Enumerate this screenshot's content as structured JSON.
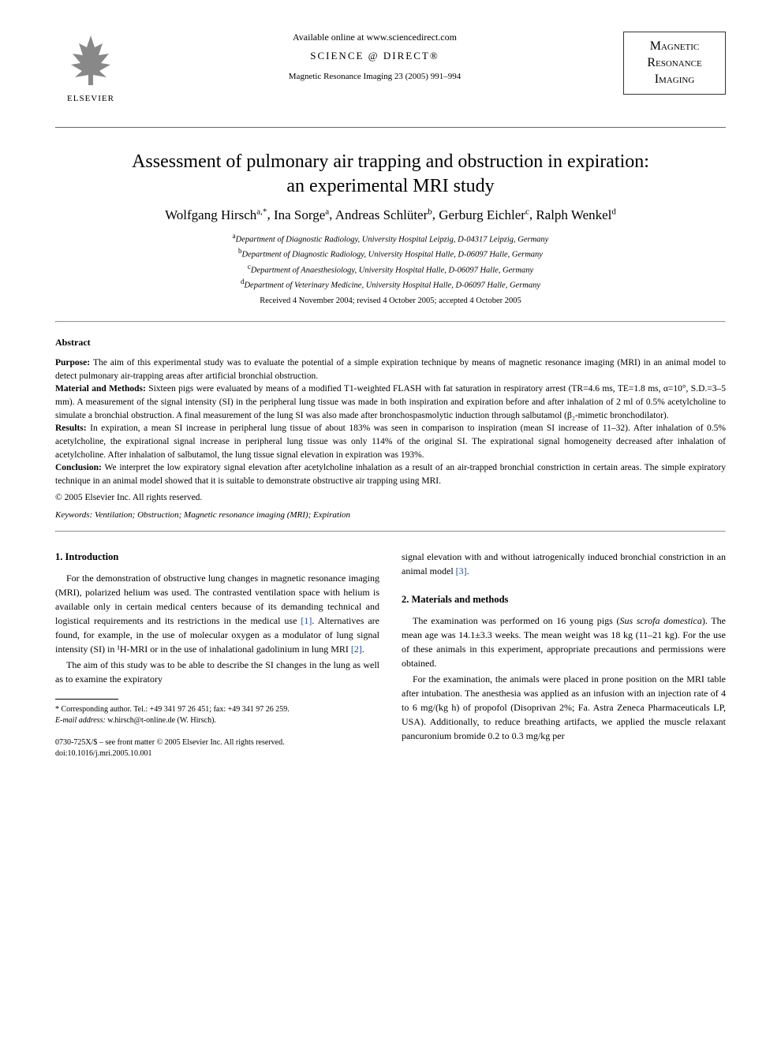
{
  "header": {
    "available_online": "Available online at www.sciencedirect.com",
    "sciencedirect": "SCIENCE @ DIRECT®",
    "journal_ref": "Magnetic Resonance Imaging 23 (2005) 991–994",
    "elsevier_label": "ELSEVIER",
    "mri_logo_line1": "Magnetic",
    "mri_logo_line2": "Resonance",
    "mri_logo_line3": "Imaging"
  },
  "title_line1": "Assessment of pulmonary air trapping and obstruction in expiration:",
  "title_line2": "an experimental MRI study",
  "authors_html": "Wolfgang Hirsch",
  "authors": [
    {
      "name": "Wolfgang Hirsch",
      "sup": "a,*"
    },
    {
      "name": "Ina Sorge",
      "sup": "a"
    },
    {
      "name": "Andreas Schlüter",
      "sup": "b"
    },
    {
      "name": "Gerburg Eichler",
      "sup": "c"
    },
    {
      "name": "Ralph Wenkel",
      "sup": "d"
    }
  ],
  "affiliations": [
    {
      "sup": "a",
      "text": "Department of Diagnostic Radiology, University Hospital Leipzig, D-04317 Leipzig, Germany"
    },
    {
      "sup": "b",
      "text": "Department of Diagnostic Radiology, University Hospital Halle, D-06097 Halle, Germany"
    },
    {
      "sup": "c",
      "text": "Department of Anaesthesiology, University Hospital Halle, D-06097 Halle, Germany"
    },
    {
      "sup": "d",
      "text": "Department of Veterinary Medicine, University Hospital Halle, D-06097 Halle, Germany"
    }
  ],
  "dates": "Received 4 November 2004; revised 4 October 2005; accepted 4 October 2005",
  "abstract": {
    "heading": "Abstract",
    "purpose_label": "Purpose: ",
    "purpose": "The aim of this experimental study was to evaluate the potential of a simple expiration technique by means of magnetic resonance imaging (MRI) in an animal model to detect pulmonary air-trapping areas after artificial bronchial obstruction.",
    "methods_label": "Material and Methods: ",
    "methods": "Sixteen pigs were evaluated by means of a modified T1-weighted FLASH with fat saturation in respiratory arrest (TR=4.6 ms, TE=1.8 ms, α=10°, S.D.=3–5 mm). A measurement of the signal intensity (SI) in the peripheral lung tissue was made in both inspiration and expiration before and after inhalation of 2 ml of 0.5% acetylcholine to simulate a bronchial obstruction. A final measurement of the lung SI was also made after bronchospasmolytic induction through salbutamol (β₂-mimetic bronchodilator).",
    "results_label": "Results: ",
    "results": "In expiration, a mean SI increase in peripheral lung tissue of about 183% was seen in comparison to inspiration (mean SI increase of 11–32). After inhalation of 0.5% acetylcholine, the expirational signal increase in peripheral lung tissue was only 114% of the original SI. The expirational signal homogeneity decreased after inhalation of acetylcholine. After inhalation of salbutamol, the lung tissue signal elevation in expiration was 193%.",
    "conclusion_label": "Conclusion: ",
    "conclusion": "We interpret the low expiratory signal elevation after acetylcholine inhalation as a result of an air-trapped bronchial constriction in certain areas. The simple expiratory technique in an animal model showed that it is suitable to demonstrate obstructive air trapping using MRI.",
    "copyright": "© 2005 Elsevier Inc. All rights reserved."
  },
  "keywords": {
    "label": "Keywords: ",
    "text": "Ventilation; Obstruction; Magnetic resonance imaging (MRI); Expiration"
  },
  "body": {
    "section1_heading": "1. Introduction",
    "section1_p1": "For the demonstration of obstructive lung changes in magnetic resonance imaging (MRI), polarized helium was used. The contrasted ventilation space with helium is available only in certain medical centers because of its demanding technical and logistical requirements and its restrictions in the medical use ",
    "section1_p1_cite1": "[1]",
    "section1_p1b": ". Alternatives are found, for example, in the use of molecular oxygen as a modulator of lung signal intensity (SI) in ¹H-MRI or in the use of inhalational gadolinium in lung MRI ",
    "section1_p1_cite2": "[2]",
    "section1_p1c": ".",
    "section1_p2": "The aim of this study was to be able to describe the SI changes in the lung as well as to examine the expiratory",
    "col2_p1": "signal elevation with and without iatrogenically induced bronchial constriction in an animal model ",
    "col2_p1_cite": "[3]",
    "col2_p1b": ".",
    "section2_heading": "2. Materials and methods",
    "section2_p1a": "The examination was performed on 16 young pigs (",
    "section2_p1_species": "Sus scrofa domestica",
    "section2_p1b": "). The mean age was 14.1±3.3 weeks. The mean weight was 18 kg (11–21 kg). For the use of these animals in this experiment, appropriate precautions and permissions were obtained.",
    "section2_p2": "For the examination, the animals were placed in prone position on the MRI table after intubation. The anesthesia was applied as an infusion with an injection rate of 4 to 6 mg/(kg h) of propofol (Disoprivan 2%; Fa. Astra Zeneca Pharmaceuticals LP, USA). Additionally, to reduce breathing artifacts, we applied the muscle relaxant pancuronium bromide 0.2 to 0.3 mg/kg per"
  },
  "footnotes": {
    "corresponding": "* Corresponding author. Tel.: +49 341 97 26 451; fax: +49 341 97 26 259.",
    "email_label": "E-mail address: ",
    "email": "w.hirsch@t-online.de (W. Hirsch)."
  },
  "doi": {
    "line1": "0730-725X/$ – see front matter © 2005 Elsevier Inc. All rights reserved.",
    "line2": "doi:10.1016/j.mri.2005.10.001"
  },
  "colors": {
    "text": "#000000",
    "background": "#ffffff",
    "link": "#1a4fa8",
    "rule": "#666666"
  },
  "typography": {
    "title_fontsize": 24,
    "authors_fontsize": 17,
    "body_fontsize": 12,
    "abstract_fontsize": 11.5,
    "footnote_fontsize": 10,
    "font_family": "Georgia/Times serif"
  }
}
